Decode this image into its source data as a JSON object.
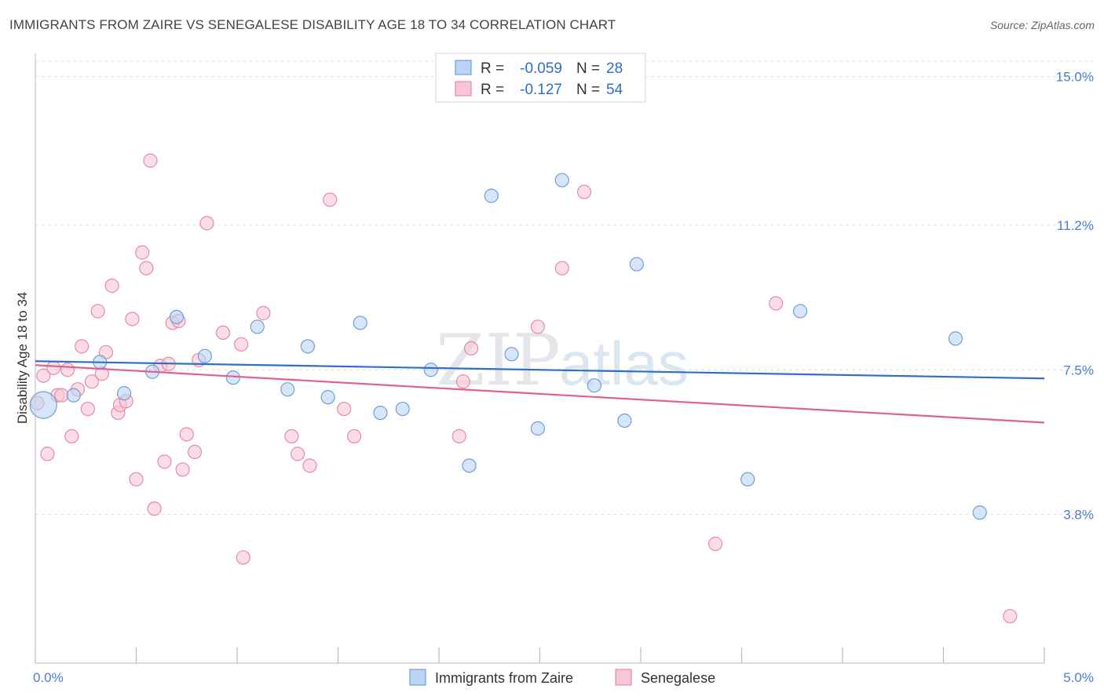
{
  "header": {
    "title": "IMMIGRANTS FROM ZAIRE VS SENEGALESE DISABILITY AGE 18 TO 34 CORRELATION CHART",
    "source": "Source: ZipAtlas.com"
  },
  "watermark": {
    "part1": "ZIP",
    "part2": "atlas"
  },
  "chart_data": {
    "type": "scatter",
    "ylabel": "Disability Age 18 to 34",
    "xlim": [
      0.0,
      5.0
    ],
    "ylim": [
      0.0,
      15.0
    ],
    "x_tick_labels": [
      {
        "value": 0.0,
        "label": "0.0%"
      },
      {
        "value": 5.0,
        "label": "5.0%"
      }
    ],
    "y_tick_labels": [
      {
        "value": 15.0,
        "label": "15.0%"
      },
      {
        "value": 11.2,
        "label": "11.2%"
      },
      {
        "value": 7.5,
        "label": "7.5%"
      },
      {
        "value": 3.8,
        "label": "3.8%"
      }
    ],
    "grid": true,
    "legend_placement": "top-center",
    "colors": {
      "zaire_fill": "#bcd4f3",
      "zaire_stroke": "#6f9fd8",
      "zaire_line": "#2f6fcc",
      "senegalese_fill": "#f9c6d6",
      "senegalese_stroke": "#e98aa8",
      "senegalese_line": "#e0608e"
    },
    "legend": [
      {
        "series": "zaire",
        "r_label": "R = ",
        "r_value": "-0.059",
        "n_label": "N = ",
        "n_value": "28"
      },
      {
        "series": "senegalese",
        "r_label": "R = ",
        "r_value": "-0.127",
        "n_label": "N = ",
        "n_value": "54"
      }
    ],
    "series": [
      {
        "key": "zaire",
        "name": "Immigrants from Zaire",
        "trend": {
          "x0": 0.0,
          "y0": 7.72,
          "x1": 5.0,
          "y1": 7.28
        },
        "points": [
          {
            "x": 0.04,
            "y": 6.6,
            "size": "large"
          },
          {
            "x": 0.19,
            "y": 6.85
          },
          {
            "x": 0.32,
            "y": 7.7
          },
          {
            "x": 0.44,
            "y": 6.9
          },
          {
            "x": 0.58,
            "y": 7.45
          },
          {
            "x": 0.7,
            "y": 8.85
          },
          {
            "x": 0.84,
            "y": 7.85
          },
          {
            "x": 0.98,
            "y": 7.3
          },
          {
            "x": 1.1,
            "y": 8.6
          },
          {
            "x": 1.25,
            "y": 7.0
          },
          {
            "x": 1.35,
            "y": 8.1
          },
          {
            "x": 1.45,
            "y": 6.8
          },
          {
            "x": 1.61,
            "y": 8.7
          },
          {
            "x": 1.71,
            "y": 6.4
          },
          {
            "x": 1.82,
            "y": 6.5
          },
          {
            "x": 1.96,
            "y": 7.5
          },
          {
            "x": 2.15,
            "y": 5.05
          },
          {
            "x": 2.26,
            "y": 11.95
          },
          {
            "x": 2.36,
            "y": 7.9
          },
          {
            "x": 2.49,
            "y": 6.0
          },
          {
            "x": 2.61,
            "y": 12.35
          },
          {
            "x": 2.77,
            "y": 7.1
          },
          {
            "x": 2.92,
            "y": 6.2
          },
          {
            "x": 2.98,
            "y": 10.2
          },
          {
            "x": 3.53,
            "y": 4.7
          },
          {
            "x": 3.79,
            "y": 9.0
          },
          {
            "x": 4.56,
            "y": 8.3
          },
          {
            "x": 4.68,
            "y": 3.85
          }
        ]
      },
      {
        "key": "senegalese",
        "name": "Senegalese",
        "trend": {
          "x0": 0.0,
          "y0": 7.62,
          "x1": 5.0,
          "y1": 6.15
        },
        "points": [
          {
            "x": 0.01,
            "y": 6.65
          },
          {
            "x": 0.04,
            "y": 7.35
          },
          {
            "x": 0.06,
            "y": 5.35
          },
          {
            "x": 0.09,
            "y": 7.55
          },
          {
            "x": 0.11,
            "y": 6.85
          },
          {
            "x": 0.13,
            "y": 6.85
          },
          {
            "x": 0.16,
            "y": 7.5
          },
          {
            "x": 0.18,
            "y": 5.8
          },
          {
            "x": 0.21,
            "y": 7.0
          },
          {
            "x": 0.23,
            "y": 8.1
          },
          {
            "x": 0.26,
            "y": 6.5
          },
          {
            "x": 0.28,
            "y": 7.2
          },
          {
            "x": 0.31,
            "y": 9.0
          },
          {
            "x": 0.33,
            "y": 7.4
          },
          {
            "x": 0.35,
            "y": 7.95
          },
          {
            "x": 0.38,
            "y": 9.65
          },
          {
            "x": 0.41,
            "y": 6.4
          },
          {
            "x": 0.42,
            "y": 6.6
          },
          {
            "x": 0.45,
            "y": 6.7
          },
          {
            "x": 0.48,
            "y": 8.8
          },
          {
            "x": 0.5,
            "y": 4.7
          },
          {
            "x": 0.53,
            "y": 10.5
          },
          {
            "x": 0.55,
            "y": 10.1
          },
          {
            "x": 0.57,
            "y": 12.85
          },
          {
            "x": 0.59,
            "y": 3.95
          },
          {
            "x": 0.62,
            "y": 7.6
          },
          {
            "x": 0.64,
            "y": 5.15
          },
          {
            "x": 0.66,
            "y": 7.65
          },
          {
            "x": 0.68,
            "y": 8.7
          },
          {
            "x": 0.71,
            "y": 8.75
          },
          {
            "x": 0.73,
            "y": 4.95
          },
          {
            "x": 0.75,
            "y": 5.85
          },
          {
            "x": 0.79,
            "y": 5.4
          },
          {
            "x": 0.81,
            "y": 7.75
          },
          {
            "x": 0.85,
            "y": 11.25
          },
          {
            "x": 0.93,
            "y": 8.45
          },
          {
            "x": 1.02,
            "y": 8.15
          },
          {
            "x": 1.03,
            "y": 2.7
          },
          {
            "x": 1.13,
            "y": 8.95
          },
          {
            "x": 1.27,
            "y": 5.8
          },
          {
            "x": 1.3,
            "y": 5.35
          },
          {
            "x": 1.36,
            "y": 5.05
          },
          {
            "x": 1.46,
            "y": 11.85
          },
          {
            "x": 1.53,
            "y": 6.5
          },
          {
            "x": 1.58,
            "y": 5.8
          },
          {
            "x": 2.1,
            "y": 5.8
          },
          {
            "x": 2.12,
            "y": 7.2
          },
          {
            "x": 2.16,
            "y": 8.05
          },
          {
            "x": 2.49,
            "y": 8.6
          },
          {
            "x": 2.61,
            "y": 10.1
          },
          {
            "x": 2.72,
            "y": 12.05
          },
          {
            "x": 3.37,
            "y": 3.05
          },
          {
            "x": 3.67,
            "y": 9.2
          },
          {
            "x": 4.83,
            "y": 1.2
          }
        ]
      }
    ]
  }
}
